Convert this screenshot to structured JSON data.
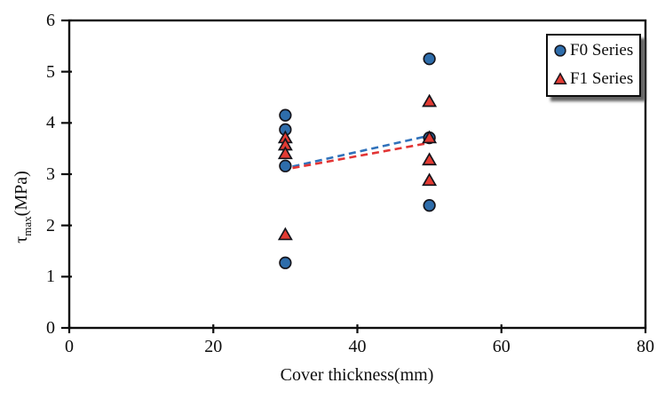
{
  "chart_data": {
    "type": "scatter",
    "title": "",
    "xlabel": "Cover thickness(mm)",
    "ylabel": "τmax(MPa)",
    "ylabel_parts": {
      "symbol": "τ",
      "subscript": "max",
      "rest": "(MPa)"
    },
    "xlim": [
      0,
      80
    ],
    "ylim": [
      0,
      6
    ],
    "x_ticks": [
      "0",
      "20",
      "40",
      "60",
      "80"
    ],
    "y_ticks": [
      "0",
      "1",
      "2",
      "3",
      "4",
      "5",
      "6"
    ],
    "grid": false,
    "legend_position": "top-right",
    "frame": true,
    "colors": {
      "axis": "#0d0d0d",
      "f0_fill": "#2e6dab",
      "f1_fill": "#e33b33",
      "marker_edge": "#15151c",
      "f0_trend": "#3072bb",
      "f1_trend": "#e23434"
    },
    "series": [
      {
        "name": "F0 Series",
        "marker": "circle",
        "fill": "#2e6dab",
        "edge": "#15151c",
        "x": [
          30,
          30,
          30,
          30,
          50,
          50,
          50
        ],
        "y": [
          4.15,
          3.87,
          3.16,
          1.27,
          5.25,
          3.71,
          2.39
        ]
      },
      {
        "name": "F1 Series",
        "marker": "triangle",
        "fill": "#e33b33",
        "edge": "#15151c",
        "x": [
          30,
          30,
          30,
          30,
          50,
          50,
          50,
          50
        ],
        "y": [
          3.71,
          3.57,
          3.4,
          1.82,
          4.42,
          3.71,
          3.28,
          2.88
        ]
      }
    ],
    "trend_lines": [
      {
        "series": "F0 Series",
        "style": "dashed",
        "color": "#3072bb",
        "x": [
          31.0,
          49.3
        ],
        "y": [
          3.15,
          3.73
        ]
      },
      {
        "series": "F1 Series",
        "style": "dashed",
        "color": "#e23434",
        "x": [
          31.0,
          49.6
        ],
        "y": [
          3.12,
          3.6
        ]
      }
    ]
  }
}
